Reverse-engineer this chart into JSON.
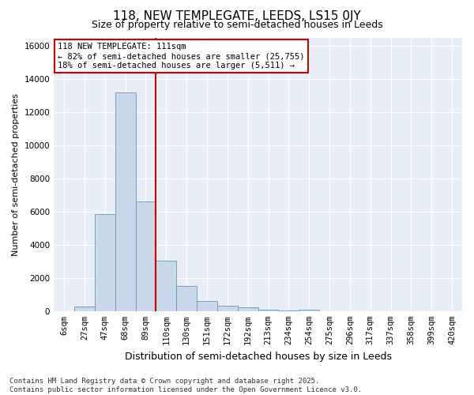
{
  "title": "118, NEW TEMPLEGATE, LEEDS, LS15 0JY",
  "subtitle": "Size of property relative to semi-detached houses in Leeds",
  "xlabel": "Distribution of semi-detached houses by size in Leeds",
  "ylabel": "Number of semi-detached properties",
  "categories": [
    "6sqm",
    "27sqm",
    "47sqm",
    "68sqm",
    "89sqm",
    "110sqm",
    "130sqm",
    "151sqm",
    "172sqm",
    "192sqm",
    "213sqm",
    "234sqm",
    "254sqm",
    "275sqm",
    "296sqm",
    "317sqm",
    "337sqm",
    "358sqm",
    "399sqm",
    "420sqm"
  ],
  "values": [
    0,
    300,
    5850,
    13200,
    6600,
    3050,
    1500,
    600,
    320,
    230,
    100,
    50,
    80,
    0,
    0,
    0,
    0,
    0,
    0,
    0
  ],
  "bar_color": "#c8d8e8",
  "bar_edge_color": "#6699bb",
  "vline_color": "#cc0000",
  "vline_x": 4.5,
  "annotation_text": "118 NEW TEMPLEGATE: 111sqm\n← 82% of semi-detached houses are smaller (25,755)\n18% of semi-detached houses are larger (5,511) →",
  "annotation_box_edgecolor": "#cc0000",
  "ylim": [
    0,
    16500
  ],
  "yticks": [
    0,
    2000,
    4000,
    6000,
    8000,
    10000,
    12000,
    14000,
    16000
  ],
  "background_color": "#e8eef5",
  "footer": "Contains HM Land Registry data © Crown copyright and database right 2025.\nContains public sector information licensed under the Open Government Licence v3.0.",
  "title_fontsize": 11,
  "subtitle_fontsize": 9,
  "annotation_fontsize": 7.5,
  "ylabel_fontsize": 8,
  "xlabel_fontsize": 9,
  "tick_fontsize": 7.5,
  "footer_fontsize": 6.5
}
